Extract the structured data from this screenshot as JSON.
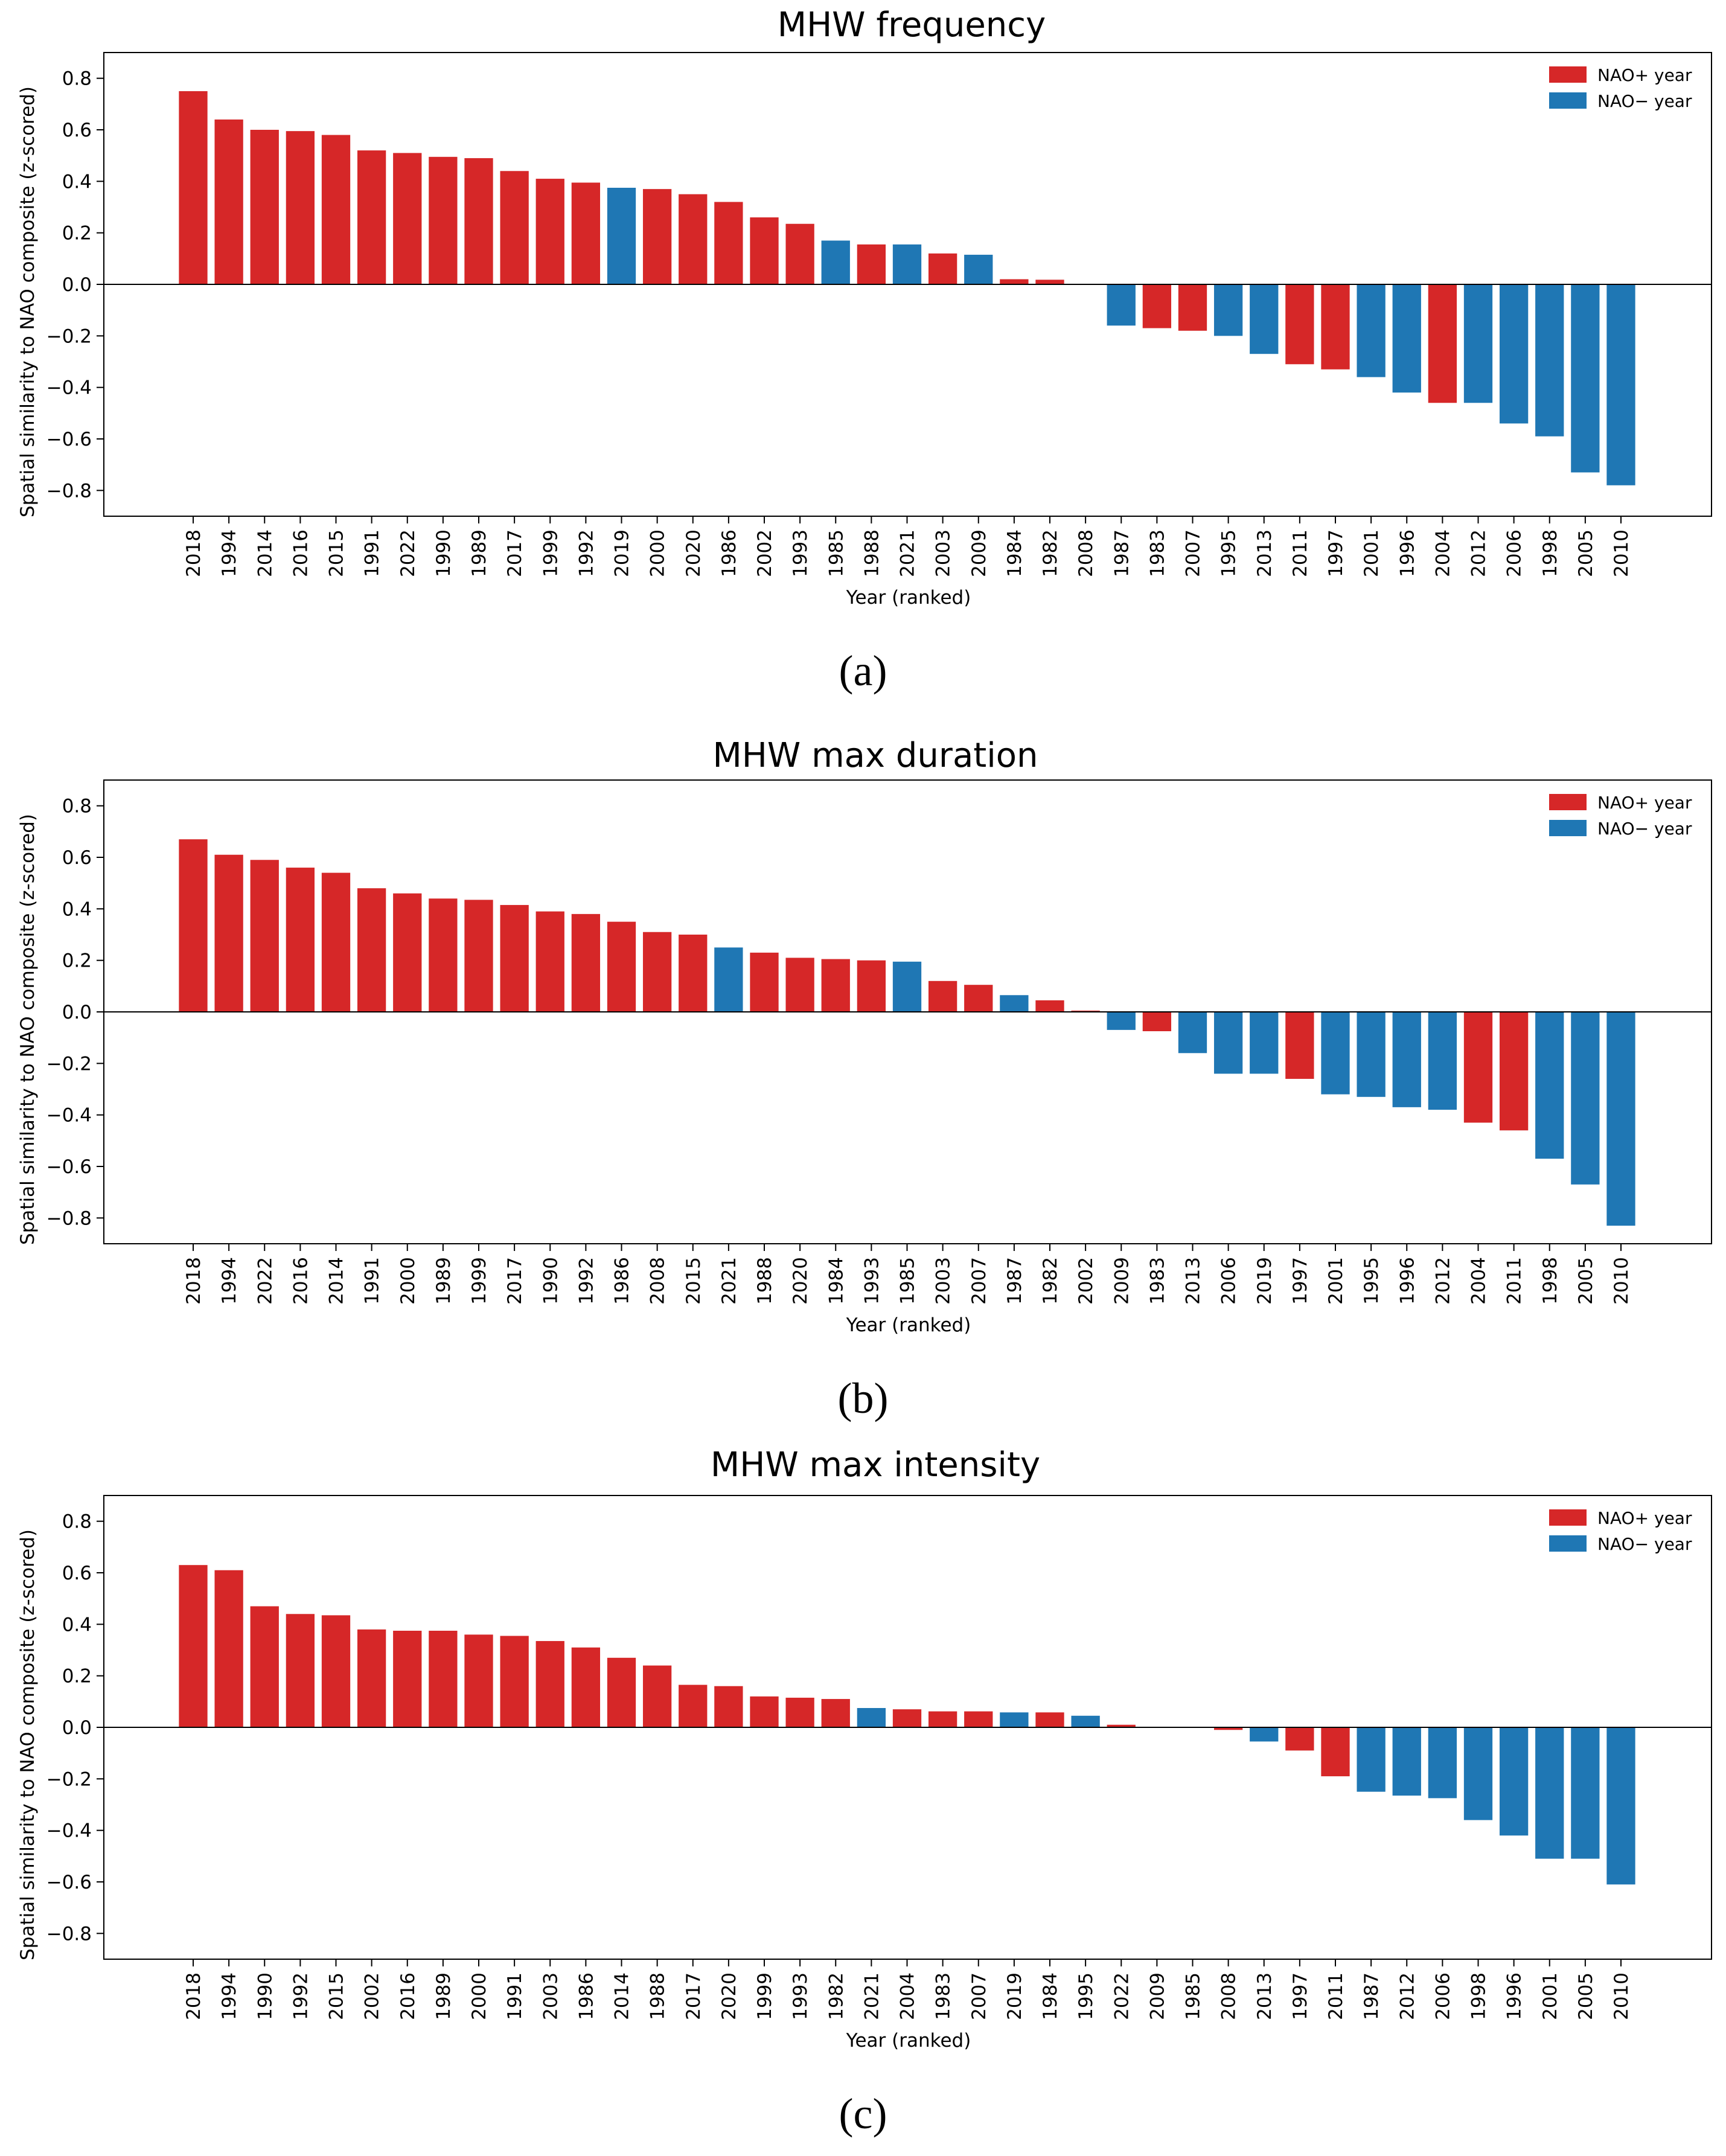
{
  "colors": {
    "nao_pos": "#d62728",
    "nao_neg": "#1f77b4",
    "axis": "#000000"
  },
  "legend": {
    "pos_label": "NAO+ year",
    "neg_label": "NAO− year",
    "placement": "top-right"
  },
  "chart_data": [
    {
      "type": "bar",
      "title": "MHW frequency",
      "caption": "(a)",
      "xlabel": "Year (ranked)",
      "ylabel": "Spatial similarity to NAO composite (z-scored)",
      "ylim": [
        -0.9,
        0.9
      ],
      "yticks": [
        "0.8",
        "0.6",
        "0.4",
        "0.2",
        "0.0",
        "−0.2",
        "−0.4",
        "−0.6",
        "−0.8"
      ],
      "categories": [
        "2018",
        "1994",
        "2014",
        "2016",
        "2015",
        "1991",
        "2022",
        "1990",
        "1989",
        "2017",
        "1999",
        "1992",
        "2019",
        "2000",
        "2020",
        "1986",
        "2002",
        "1993",
        "1985",
        "1988",
        "2021",
        "2003",
        "2009",
        "1984",
        "1982",
        "2008",
        "1987",
        "1983",
        "2007",
        "1995",
        "2013",
        "2011",
        "1997",
        "2001",
        "1996",
        "2004",
        "2012",
        "2006",
        "1998",
        "2005",
        "2010"
      ],
      "values": [
        0.75,
        0.64,
        0.6,
        0.595,
        0.58,
        0.52,
        0.51,
        0.495,
        0.49,
        0.44,
        0.41,
        0.395,
        0.375,
        0.37,
        0.35,
        0.32,
        0.26,
        0.235,
        0.17,
        0.155,
        0.155,
        0.12,
        0.115,
        0.02,
        0.018,
        0.0,
        -0.16,
        -0.17,
        -0.18,
        -0.2,
        -0.27,
        -0.31,
        -0.33,
        -0.36,
        -0.42,
        -0.46,
        -0.46,
        -0.54,
        -0.59,
        -0.73,
        -0.78
      ],
      "nao": [
        "+",
        "+",
        "+",
        "+",
        "+",
        "+",
        "+",
        "+",
        "+",
        "+",
        "+",
        "+",
        "-",
        "+",
        "+",
        "+",
        "+",
        "+",
        "-",
        "+",
        "-",
        "+",
        "-",
        "+",
        "+",
        "+",
        "-",
        "+",
        "+",
        "-",
        "-",
        "+",
        "+",
        "-",
        "-",
        "+",
        "-",
        "-",
        "-",
        "-",
        "-"
      ]
    },
    {
      "type": "bar",
      "title": "MHW max duration",
      "caption": "(b)",
      "xlabel": "Year (ranked)",
      "ylabel": "Spatial similarity to NAO composite (z-scored)",
      "ylim": [
        -0.9,
        0.9
      ],
      "yticks": [
        "0.8",
        "0.6",
        "0.4",
        "0.2",
        "0.0",
        "−0.2",
        "−0.4",
        "−0.6",
        "−0.8"
      ],
      "categories": [
        "2018",
        "1994",
        "2022",
        "2016",
        "2014",
        "1991",
        "2000",
        "1989",
        "1999",
        "2017",
        "1990",
        "1992",
        "1986",
        "2008",
        "2015",
        "2021",
        "1988",
        "2020",
        "1984",
        "1993",
        "1985",
        "2003",
        "2007",
        "1987",
        "1982",
        "2002",
        "2009",
        "1983",
        "2013",
        "2006",
        "2019",
        "1997",
        "2001",
        "1995",
        "1996",
        "2012",
        "2004",
        "2011",
        "1998",
        "2005",
        "2010"
      ],
      "values": [
        0.67,
        0.61,
        0.59,
        0.56,
        0.54,
        0.48,
        0.46,
        0.44,
        0.435,
        0.415,
        0.39,
        0.38,
        0.35,
        0.31,
        0.3,
        0.25,
        0.23,
        0.21,
        0.205,
        0.2,
        0.195,
        0.12,
        0.105,
        0.065,
        0.045,
        0.005,
        -0.07,
        -0.075,
        -0.16,
        -0.24,
        -0.24,
        -0.26,
        -0.32,
        -0.33,
        -0.37,
        -0.38,
        -0.43,
        -0.46,
        -0.57,
        -0.67,
        -0.83
      ],
      "nao": [
        "+",
        "+",
        "+",
        "+",
        "+",
        "+",
        "+",
        "+",
        "+",
        "+",
        "+",
        "+",
        "+",
        "+",
        "+",
        "-",
        "+",
        "+",
        "+",
        "+",
        "-",
        "+",
        "+",
        "-",
        "+",
        "+",
        "-",
        "+",
        "-",
        "-",
        "-",
        "+",
        "-",
        "-",
        "-",
        "-",
        "+",
        "+",
        "-",
        "-",
        "-"
      ]
    },
    {
      "type": "bar",
      "title": "MHW max intensity",
      "caption": "(c)",
      "xlabel": "Year (ranked)",
      "ylabel": "Spatial similarity to NAO composite (z-scored)",
      "ylim": [
        -0.9,
        0.9
      ],
      "yticks": [
        "0.8",
        "0.6",
        "0.4",
        "0.2",
        "0.0",
        "−0.2",
        "−0.4",
        "−0.6",
        "−0.8"
      ],
      "categories": [
        "2018",
        "1994",
        "1990",
        "1992",
        "2015",
        "2002",
        "2016",
        "1989",
        "2000",
        "1991",
        "2003",
        "1986",
        "2014",
        "1988",
        "2017",
        "2020",
        "1999",
        "1993",
        "1982",
        "2021",
        "2004",
        "1983",
        "2007",
        "2019",
        "1984",
        "1995",
        "2022",
        "2009",
        "1985",
        "2008",
        "2013",
        "1997",
        "2011",
        "1987",
        "2012",
        "2006",
        "1998",
        "1996",
        "2001",
        "2005",
        "2010"
      ],
      "values": [
        0.63,
        0.61,
        0.47,
        0.44,
        0.435,
        0.38,
        0.375,
        0.375,
        0.36,
        0.355,
        0.335,
        0.31,
        0.27,
        0.24,
        0.165,
        0.16,
        0.12,
        0.115,
        0.11,
        0.075,
        0.07,
        0.062,
        0.062,
        0.058,
        0.058,
        0.045,
        0.01,
        0.0,
        0.0,
        -0.01,
        -0.055,
        -0.09,
        -0.19,
        -0.25,
        -0.265,
        -0.275,
        -0.36,
        -0.42,
        -0.51,
        -0.51,
        -0.61
      ],
      "nao": [
        "+",
        "+",
        "+",
        "+",
        "+",
        "+",
        "+",
        "+",
        "+",
        "+",
        "+",
        "+",
        "+",
        "+",
        "+",
        "+",
        "+",
        "+",
        "+",
        "-",
        "+",
        "+",
        "+",
        "-",
        "+",
        "-",
        "+",
        "+",
        "+",
        "+",
        "-",
        "+",
        "+",
        "-",
        "-",
        "-",
        "-",
        "-",
        "-",
        "-",
        "-"
      ]
    }
  ]
}
